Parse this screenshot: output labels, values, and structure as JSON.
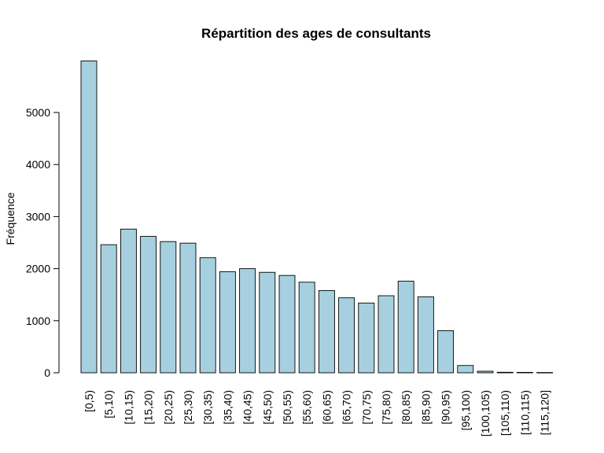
{
  "chart_data": {
    "type": "bar",
    "title": "Répartition des ages de consultants",
    "xlabel": "",
    "ylabel": "Fréquence",
    "categories": [
      "[0,5)",
      "[5,10)",
      "[10,15)",
      "[15,20)",
      "[20,25)",
      "[25,30)",
      "[30,35)",
      "[35,40)",
      "[40,45)",
      "[45,50)",
      "[50,55)",
      "[55,60)",
      "[60,65)",
      "[65,70)",
      "[70,75)",
      "[75,80)",
      "[80,85)",
      "[85,90)",
      "[90,95)",
      "[95,100)",
      "[100,105)",
      "[105,110)",
      "[110,115)",
      "[115,120]"
    ],
    "values": [
      5990,
      2460,
      2760,
      2620,
      2520,
      2490,
      2210,
      1940,
      2000,
      1930,
      1870,
      1740,
      1580,
      1440,
      1340,
      1480,
      1760,
      1460,
      810,
      140,
      30,
      10,
      8,
      5
    ],
    "yticks": [
      0,
      1000,
      2000,
      3000,
      4000,
      5000
    ],
    "ylim": [
      0,
      6000
    ],
    "bar_color": "#a6d0e0",
    "edge_color": "#000000",
    "grid": false
  }
}
